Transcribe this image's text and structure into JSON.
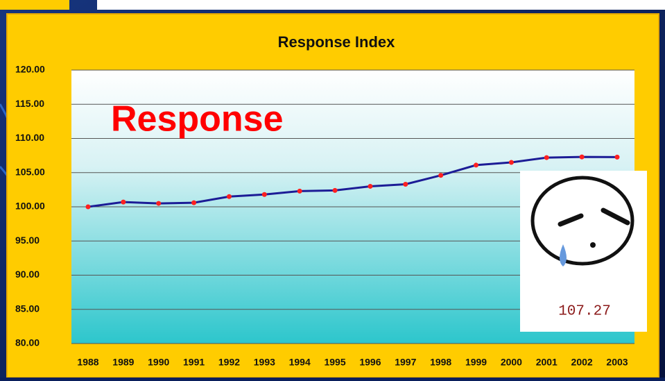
{
  "chart_data": {
    "type": "line",
    "title": "Response Index",
    "annotations": [
      "Response",
      "107.27"
    ],
    "categories": [
      "1988",
      "1989",
      "1990",
      "1991",
      "1992",
      "1993",
      "1994",
      "1995",
      "1996",
      "1997",
      "1998",
      "1999",
      "2000",
      "2001",
      "2002",
      "2003"
    ],
    "series": [
      {
        "name": "Response Index",
        "color": "#1c1c96",
        "marker_color": "#ff2020",
        "values": [
          100.0,
          100.7,
          100.5,
          100.6,
          101.5,
          101.8,
          102.3,
          102.4,
          103.0,
          103.3,
          104.6,
          106.1,
          106.5,
          107.2,
          107.3,
          107.27
        ]
      }
    ],
    "ylim": [
      80,
      120
    ],
    "yticks": [
      {
        "value": 80,
        "label": "80.00"
      },
      {
        "value": 85,
        "label": "85.00"
      },
      {
        "value": 90,
        "label": "90.00"
      },
      {
        "value": 95,
        "label": "95.00"
      },
      {
        "value": 100,
        "label": "100.00"
      },
      {
        "value": 105,
        "label": "105.00"
      },
      {
        "value": 110,
        "label": "110.00"
      },
      {
        "value": 115,
        "label": "115.00"
      },
      {
        "value": 120,
        "label": "120.00"
      }
    ],
    "grid": true
  }
}
